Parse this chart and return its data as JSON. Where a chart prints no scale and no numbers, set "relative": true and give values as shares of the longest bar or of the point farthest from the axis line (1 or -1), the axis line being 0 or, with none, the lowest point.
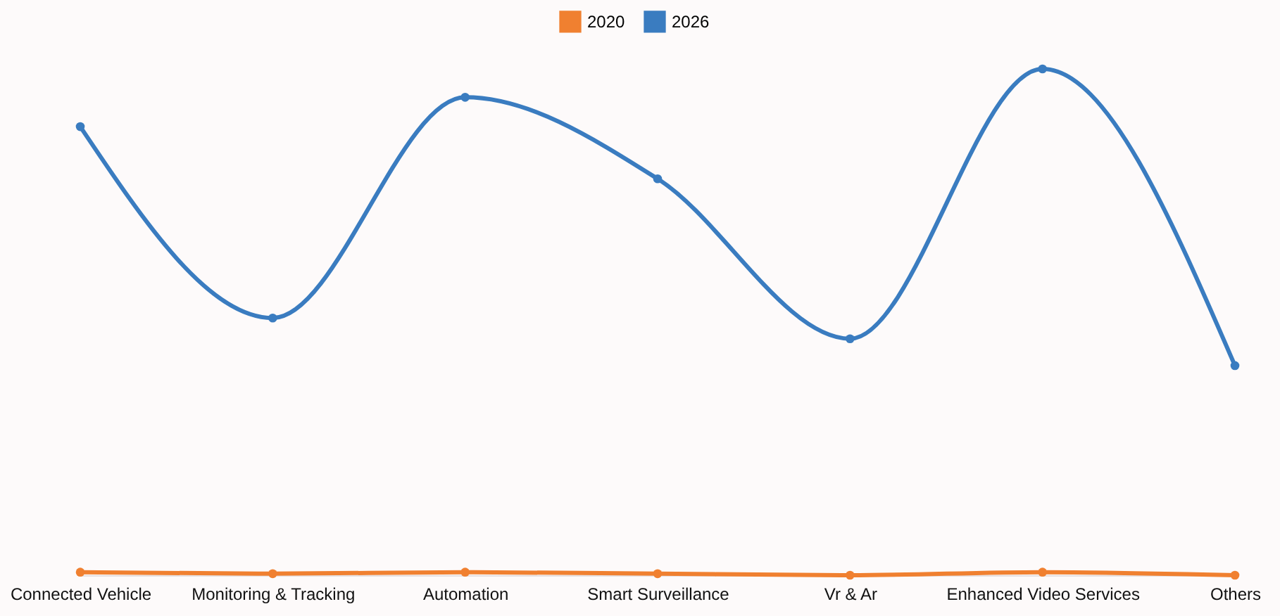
{
  "chart_data": {
    "type": "line",
    "relative": true,
    "categories": [
      "Connected Vehicle",
      "Monitoring & Tracking",
      "Automation",
      "Smart Surveillance",
      "Vr & Ar",
      "Enhanced Video Services",
      "Others"
    ],
    "series": [
      {
        "name": "2020",
        "color": "#f08030",
        "values": [
          0.006,
          0.003,
          0.006,
          0.003,
          0,
          0.006,
          0
        ]
      },
      {
        "name": "2026",
        "color": "#3a7cc0",
        "values": [
          0.886,
          0.508,
          0.944,
          0.783,
          0.467,
          1,
          0.414
        ]
      }
    ],
    "legend": "top",
    "marker": "circle",
    "line_style": "solid",
    "grid": false
  }
}
